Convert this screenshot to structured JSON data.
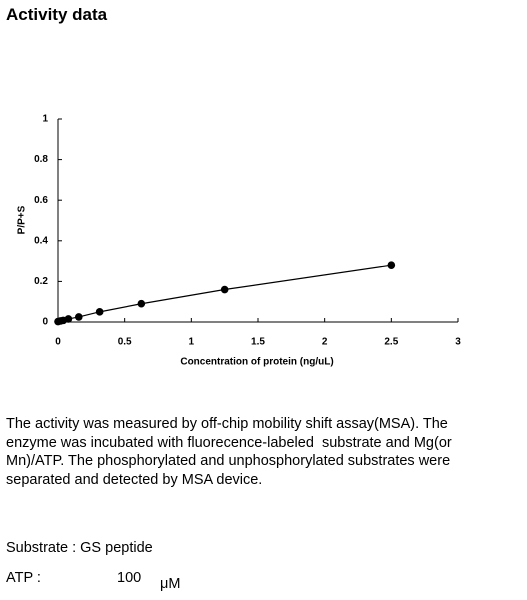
{
  "header": {
    "title": "Activity data"
  },
  "chart_data": {
    "type": "line",
    "xlabel": "Concentration of protein (ng/uL)",
    "ylabel": "P/P+S",
    "x": [
      0,
      0.0195,
      0.039,
      0.078,
      0.156,
      0.3125,
      0.625,
      1.25,
      2.5
    ],
    "values": [
      0.002,
      0.005,
      0.008,
      0.015,
      0.025,
      0.05,
      0.09,
      0.16,
      0.28
    ],
    "color": "#000000",
    "xlim": [
      0,
      3
    ],
    "xticks": [
      0,
      0.5,
      1,
      1.5,
      2,
      2.5,
      3
    ],
    "ylim": [
      0,
      1
    ],
    "yticks": [
      0,
      0.2,
      0.4,
      0.6,
      0.8,
      1
    ]
  },
  "description": {
    "lines": [
      "The activity was measured by off-chip mobility shift assay(MSA). The",
      "enzyme was incubated with fluorecence-labeled  substrate and Mg(or",
      "Mn)/ATP. The phosphorylated and unphosphorylated substrates were",
      "separated and detected by MSA device."
    ]
  },
  "conditions": {
    "substrate": "Substrate : GS peptide",
    "atp_label": "ATP :",
    "atp_value": "100",
    "atp_unit": "μM"
  }
}
